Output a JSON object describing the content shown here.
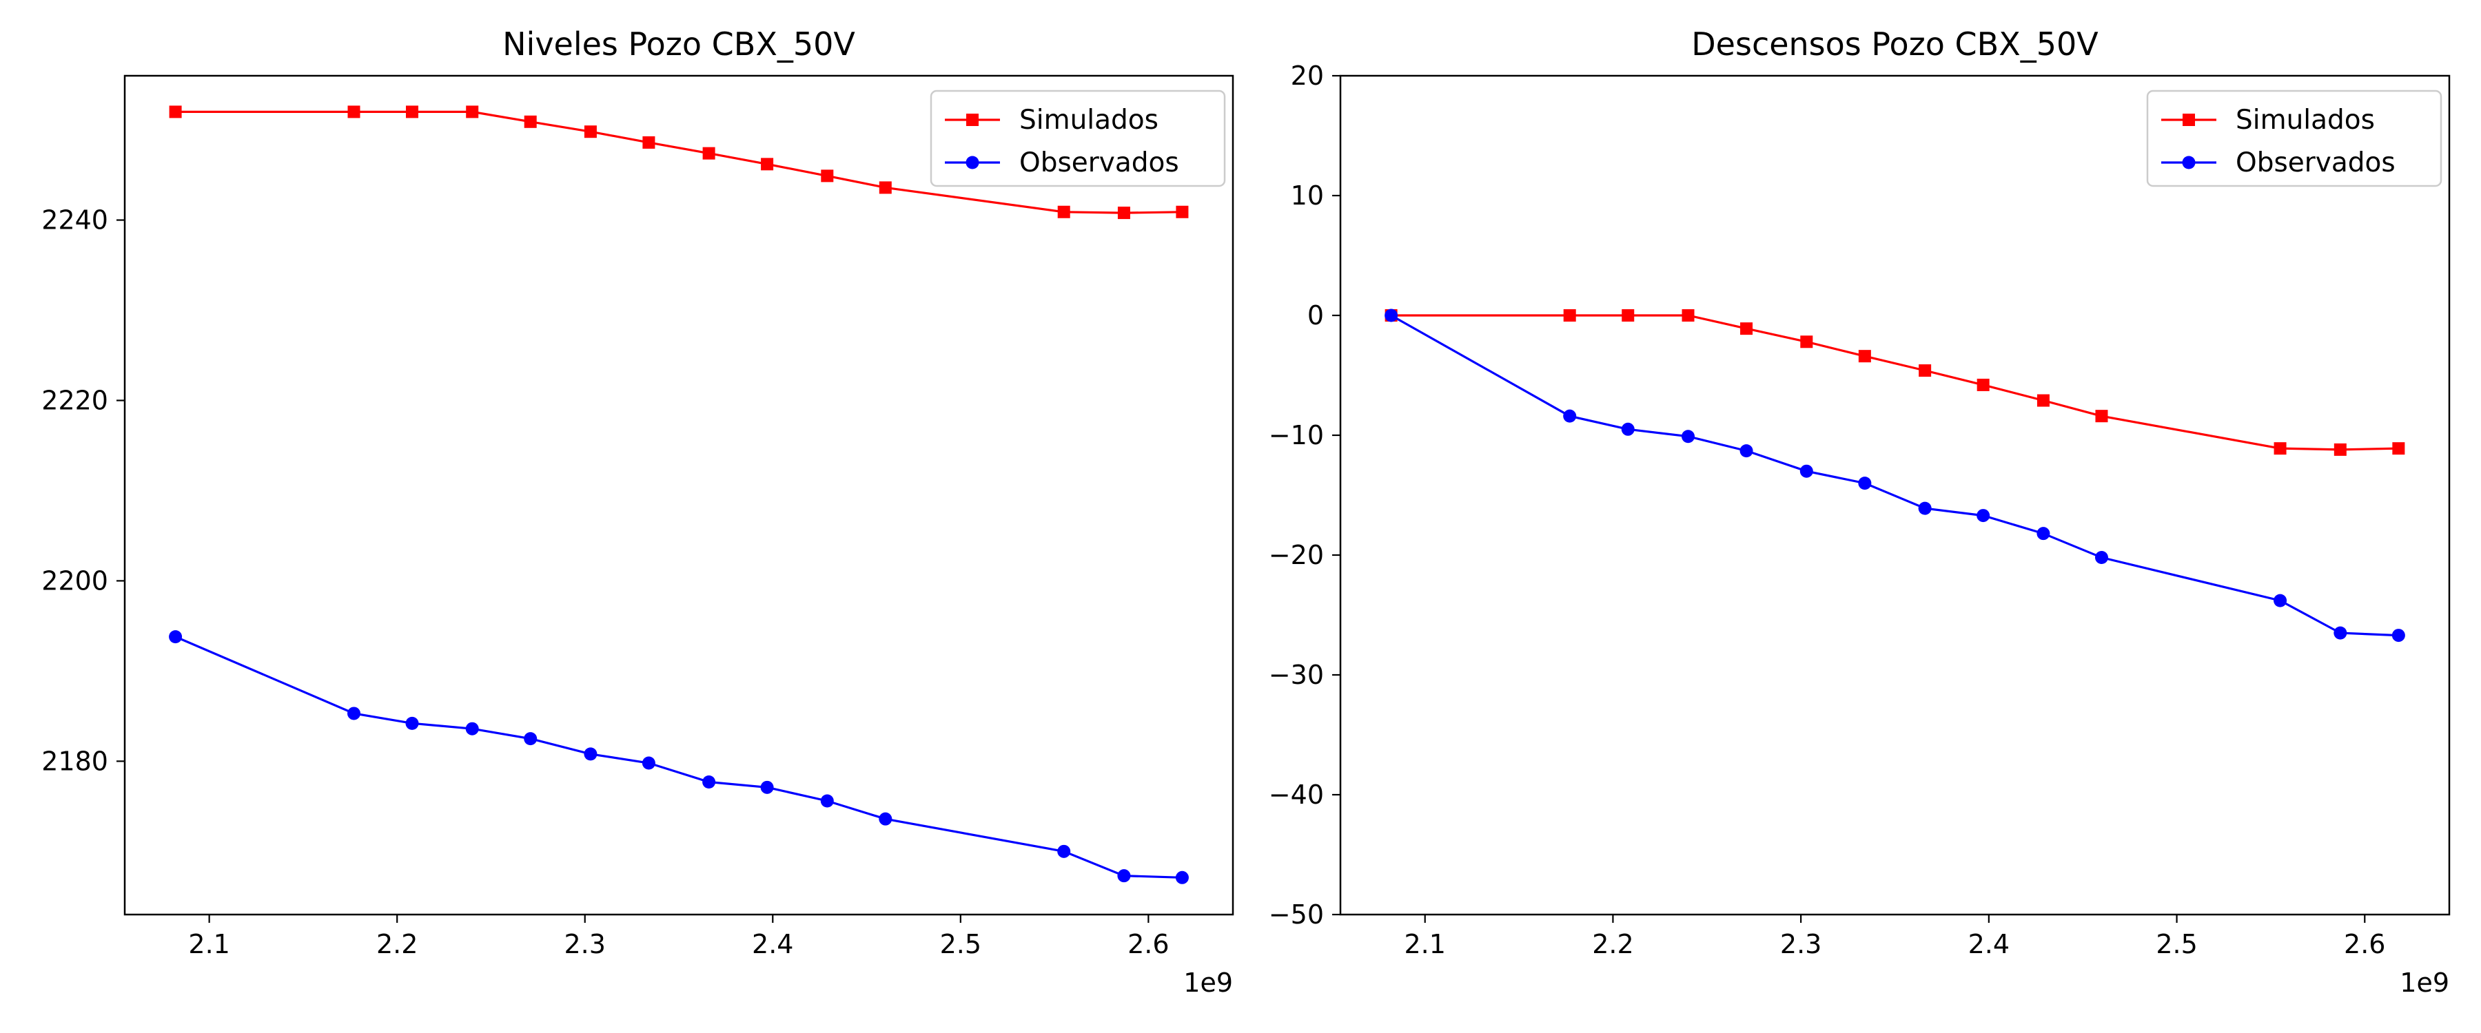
{
  "chart_data": [
    {
      "type": "line",
      "title": "Niveles Pozo CBX_50V",
      "xlabel": "",
      "ylabel": "",
      "x_offset_text": "1e9",
      "xlim": [
        2.055,
        2.645
      ],
      "ylim": [
        2163,
        2256
      ],
      "xticks": [
        2.1,
        2.2,
        2.3,
        2.4,
        2.5,
        2.6
      ],
      "yticks": [
        2180,
        2200,
        2220,
        2240
      ],
      "legend_position": "upper right",
      "grid": false,
      "x": [
        2.082,
        2.177,
        2.208,
        2.24,
        2.271,
        2.303,
        2.334,
        2.366,
        2.397,
        2.429,
        2.46,
        2.555,
        2.587,
        2.618
      ],
      "series": [
        {
          "name": "Simulados",
          "color": "#ff0000",
          "marker": "square",
          "values": [
            2252.0,
            2252.0,
            2252.0,
            2252.0,
            2250.9,
            2249.8,
            2248.6,
            2247.4,
            2246.2,
            2244.9,
            2243.6,
            2240.9,
            2240.8,
            2240.9
          ]
        },
        {
          "name": "Observados",
          "color": "#0000ff",
          "marker": "circle",
          "values": [
            2193.8,
            2185.3,
            2184.2,
            2183.6,
            2182.5,
            2180.8,
            2179.8,
            2177.7,
            2177.1,
            2175.6,
            2173.6,
            2170.0,
            2167.3,
            2167.1
          ]
        }
      ]
    },
    {
      "type": "line",
      "title": "Descensos Pozo CBX_50V",
      "xlabel": "",
      "ylabel": "",
      "x_offset_text": "1e9",
      "xlim": [
        2.055,
        2.645
      ],
      "ylim": [
        -50,
        20
      ],
      "xticks": [
        2.1,
        2.2,
        2.3,
        2.4,
        2.5,
        2.6
      ],
      "yticks": [
        -50,
        -40,
        -30,
        -20,
        -10,
        0,
        10,
        20
      ],
      "legend_position": "upper right",
      "grid": false,
      "x": [
        2.082,
        2.177,
        2.208,
        2.24,
        2.271,
        2.303,
        2.334,
        2.366,
        2.397,
        2.429,
        2.46,
        2.555,
        2.587,
        2.618
      ],
      "series": [
        {
          "name": "Simulados",
          "color": "#ff0000",
          "marker": "square",
          "values": [
            0,
            0,
            0,
            0,
            -1.1,
            -2.2,
            -3.4,
            -4.6,
            -5.8,
            -7.1,
            -8.4,
            -11.1,
            -11.2,
            -11.1
          ]
        },
        {
          "name": "Observados",
          "color": "#0000ff",
          "marker": "circle",
          "values": [
            0,
            -8.4,
            -9.5,
            -10.1,
            -11.3,
            -13.0,
            -14.0,
            -16.1,
            -16.7,
            -18.2,
            -20.2,
            -23.8,
            -26.5,
            -26.7
          ]
        }
      ]
    }
  ]
}
